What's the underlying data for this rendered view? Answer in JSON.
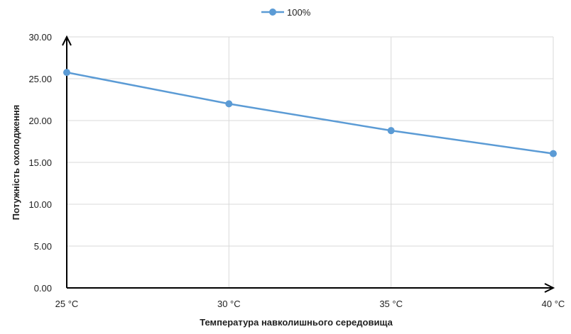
{
  "chart_data": {
    "type": "line",
    "categories": [
      "25 °C",
      "30 °C",
      "35 °C",
      "40 °C"
    ],
    "series": [
      {
        "name": "100%",
        "values": [
          25.75,
          22.0,
          18.8,
          16.05
        ],
        "color": "#5b9bd5"
      }
    ],
    "xlabel": "Температура навколишнього середовища",
    "ylabel": "Потужність охолодження",
    "ylim": [
      0,
      30
    ],
    "yticks": [
      "0.00",
      "5.00",
      "10.00",
      "15.00",
      "20.00",
      "25.00",
      "30.00"
    ],
    "grid": true,
    "legend_position": "top-center"
  }
}
